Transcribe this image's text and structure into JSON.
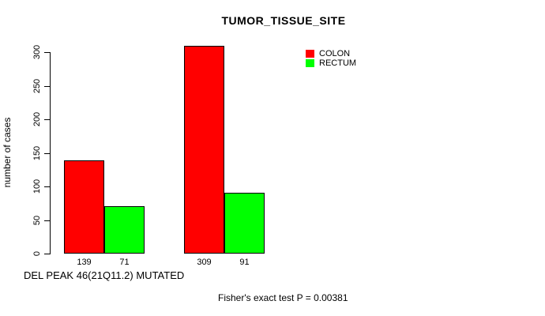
{
  "chart_data": {
    "type": "bar",
    "title": "TUMOR_TISSUE_SITE",
    "ylabel": "number of cases",
    "xlabel": "",
    "ylim": [
      0,
      300
    ],
    "yticks": [
      0,
      50,
      100,
      150,
      200,
      250,
      300
    ],
    "grid": false,
    "legend_position": "inside-top-right",
    "categories": [
      "",
      ""
    ],
    "series": [
      {
        "name": "COLON",
        "color": "#FF0000",
        "values": [
          139,
          309
        ]
      },
      {
        "name": "RECTUM",
        "color": "#00FF00",
        "values": [
          71,
          91
        ]
      }
    ],
    "bar_value_labels": [
      "139",
      "71",
      "309",
      "91"
    ],
    "annotations": {
      "bottom_left_note": "DEL PEAK 46(21Q11.2) MUTATED",
      "stat_note": "Fisher's exact test P = 0.00381"
    },
    "colors": {
      "bar_border": "#000000",
      "axis": "#000000",
      "text": "#000000",
      "background": "#FFFFFF"
    }
  }
}
